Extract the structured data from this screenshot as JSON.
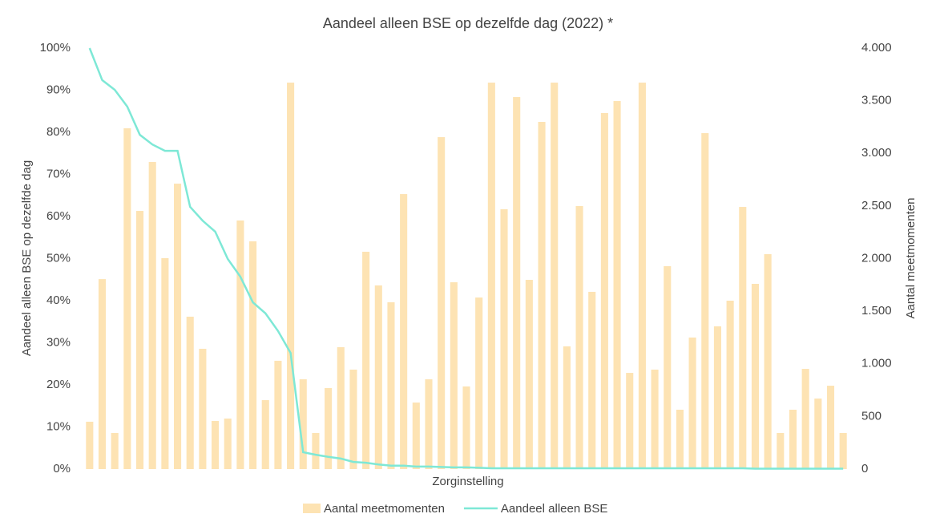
{
  "chart_data": {
    "type": "bar-line",
    "title": "Aandeel alleen BSE op dezelfde dag (2022) *",
    "x_label": "Zorginstelling",
    "y_label": "Aandeel alleen BSE op dezelfde dag",
    "y2_label": "Aantal meetmomenten",
    "categories": [
      null,
      null,
      null,
      null,
      null,
      null,
      null,
      null,
      null,
      null,
      null,
      null,
      null,
      null,
      null,
      null,
      null,
      null,
      null,
      null,
      null,
      null,
      null,
      null,
      null,
      null,
      null,
      null,
      null,
      null,
      null,
      null,
      null,
      null,
      null,
      null,
      null,
      null,
      null,
      null,
      null,
      null,
      null,
      null,
      null,
      null,
      null,
      null,
      null,
      null,
      null,
      null,
      null,
      null,
      null,
      null,
      null,
      null,
      null,
      null,
      null
    ],
    "series": [
      {
        "name": "Aantal meetmomenten",
        "type": "bar",
        "axis": "y2",
        "color": "#fde3b3",
        "values": [
          450,
          1805,
          343,
          3238,
          2453,
          2918,
          2004,
          2712,
          1448,
          1143,
          457,
          480,
          2362,
          2164,
          655,
          1029,
          3672,
          853,
          343,
          770,
          1158,
          945,
          2065,
          1745,
          1585,
          2613,
          632,
          853,
          3154,
          1775,
          785,
          1630,
          3672,
          2469,
          3535,
          1798,
          3299,
          3672,
          1166,
          2499,
          1684,
          3383,
          3497,
          914,
          3672,
          945,
          1928,
          564,
          1250,
          3192,
          1356,
          1600,
          2491,
          1760,
          2042,
          343,
          564,
          952,
          670,
          792,
          343
        ]
      },
      {
        "name": "Aandeel alleen BSE",
        "type": "line",
        "axis": "y",
        "color": "#7ee8d6",
        "values": [
          100,
          92.4,
          90.1,
          86.1,
          79.4,
          77.1,
          75.6,
          75.6,
          62.3,
          59,
          56.4,
          49.9,
          45.7,
          39.6,
          37,
          32.8,
          27.6,
          4,
          3.4,
          2.9,
          2.5,
          1.7,
          1.5,
          1.1,
          0.8,
          0.8,
          0.6,
          0.6,
          0.5,
          0.4,
          0.4,
          0.3,
          0.2,
          0.2,
          0.2,
          0.2,
          0.2,
          0.2,
          0.2,
          0.2,
          0.2,
          0.2,
          0.2,
          0.2,
          0.2,
          0.2,
          0.2,
          0.2,
          0.2,
          0.2,
          0.2,
          0.2,
          0.2,
          0.1,
          0.1,
          0.1,
          0.1,
          0.1,
          0.1,
          0.1,
          0.1
        ]
      }
    ],
    "ylim": [
      0,
      100
    ],
    "yticks": [
      {
        "value": 0,
        "label": "0%"
      },
      {
        "value": 10,
        "label": "10%"
      },
      {
        "value": 20,
        "label": "20%"
      },
      {
        "value": 30,
        "label": "30%"
      },
      {
        "value": 40,
        "label": "40%"
      },
      {
        "value": 50,
        "label": "50%"
      },
      {
        "value": 60,
        "label": "60%"
      },
      {
        "value": 70,
        "label": "70%"
      },
      {
        "value": 80,
        "label": "80%"
      },
      {
        "value": 90,
        "label": "90%"
      },
      {
        "value": 100,
        "label": "100%"
      }
    ],
    "y2lim": [
      0,
      4000
    ],
    "y2ticks": [
      0,
      500,
      {
        "value": 1000,
        "label": "1.000"
      },
      {
        "value": 1500,
        "label": "1.500"
      },
      {
        "value": 2000,
        "label": "2.000"
      },
      {
        "value": 2500,
        "label": "2.500"
      },
      {
        "value": 3000,
        "label": "3.000"
      },
      {
        "value": 3500,
        "label": "3.500"
      },
      {
        "value": 4000,
        "label": "4.000"
      }
    ],
    "legend": "bottom"
  }
}
